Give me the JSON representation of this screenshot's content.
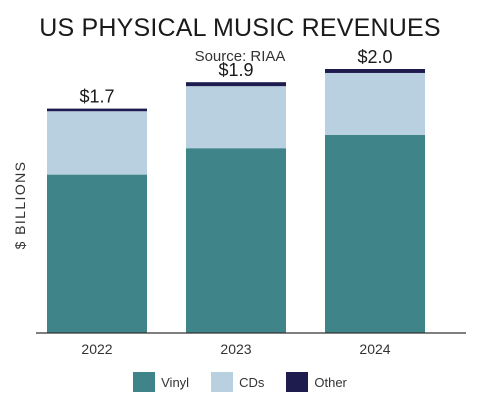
{
  "chart_data": {
    "type": "bar",
    "stacked": true,
    "title": "US PHYSICAL MUSIC REVENUES",
    "subtitle": "Source: RIAA",
    "ylabel": "$ BILLIONS",
    "xlabel": "",
    "categories": [
      "2022",
      "2023",
      "2024"
    ],
    "series": [
      {
        "name": "Vinyl",
        "values": [
          1.2,
          1.4,
          1.5
        ],
        "color": "#3f8489"
      },
      {
        "name": "CDs",
        "values": [
          0.48,
          0.47,
          0.47
        ],
        "color": "#b8d0e0"
      },
      {
        "name": "Other",
        "values": [
          0.02,
          0.03,
          0.03
        ],
        "color": "#1e1b4f"
      }
    ],
    "totals": [
      "$1.7",
      "$1.9",
      "$2.0"
    ],
    "ylim": [
      0,
      2.1
    ],
    "grid": false,
    "legend_position": "bottom"
  }
}
